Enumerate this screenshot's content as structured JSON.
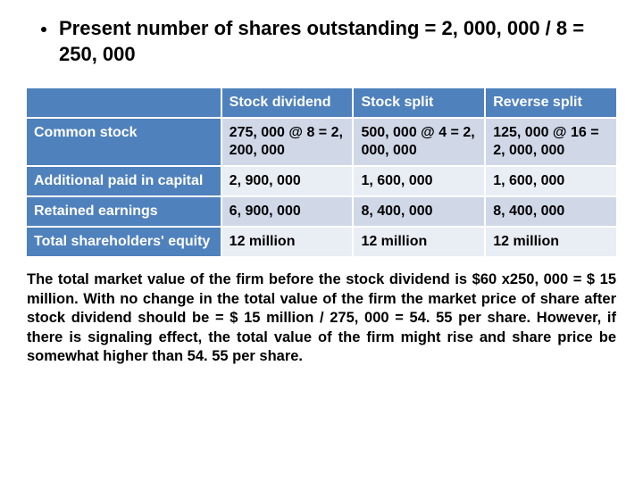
{
  "bullet": "Present number of shares outstanding = 2, 000, 000 / 8 = 250, 000",
  "table": {
    "col_headers": [
      "Stock dividend",
      "Stock split",
      "Reverse split"
    ],
    "rows": [
      {
        "label": "Common stock",
        "cells": [
          "275, 000 @ 8 = 2, 200, 000",
          "500, 000 @ 4 = 2, 000, 000",
          "125, 000 @ 16 = 2, 000, 000"
        ]
      },
      {
        "label": "Additional paid in capital",
        "cells": [
          "2, 900, 000",
          "1, 600, 000",
          "1, 600, 000"
        ]
      },
      {
        "label": "Retained earnings",
        "cells": [
          "6, 900, 000",
          "8, 400, 000",
          "8, 400, 000"
        ]
      },
      {
        "label": "Total shareholders' equity",
        "cells": [
          "12 million",
          "12 million",
          "12 million"
        ]
      }
    ],
    "header_bg": "#4f81bd",
    "header_fg": "#ffffff",
    "cell_bg_even": "#e9edf4",
    "cell_bg_odd": "#d0d8e8",
    "border_color": "#ffffff",
    "font_size": 16,
    "font_weight": 700
  },
  "paragraph": "The total market value of the firm before the stock dividend is $60 x250, 000 = $ 15 million. With no change in the total value of the firm the market price of share after stock dividend should be = $ 15 million / 275, 000 = 54. 55 per share. However, if there is signaling effect, the total value of the firm might rise and share price be somewhat higher than 54. 55 per share.",
  "colors": {
    "background": "#ffffff",
    "text": "#000000"
  }
}
